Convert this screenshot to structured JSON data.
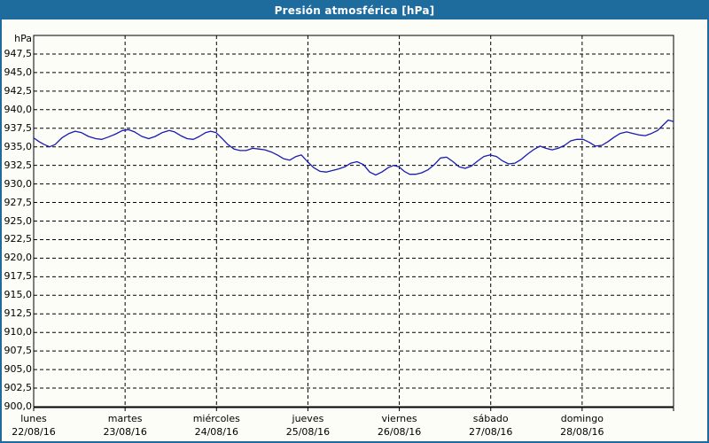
{
  "window": {
    "title": "Presión atmosférica [hPa]"
  },
  "colors": {
    "titlebar_bg": "#1e6b9d",
    "window_border": "#1e6b9d",
    "title_text": "#ffffff",
    "content_bg": "#fcfdf7",
    "plot_border": "#000000",
    "gridline": "#000000",
    "series_line": "#1a1ab4",
    "label_text": "#000000"
  },
  "chart_data": {
    "type": "line",
    "title": "Presión atmosférica [hPa]",
    "unit": "hPa",
    "ylabel": "hPa",
    "xlabel": "",
    "ylim": [
      900,
      950
    ],
    "xlim_hours": [
      0,
      168
    ],
    "grid": "dashed",
    "legend": "none",
    "yticks": [
      {
        "value": 947.5,
        "label": "947,5"
      },
      {
        "value": 945.0,
        "label": "945,0"
      },
      {
        "value": 942.5,
        "label": "942,5"
      },
      {
        "value": 940.0,
        "label": "940,0"
      },
      {
        "value": 937.5,
        "label": "937,5"
      },
      {
        "value": 935.0,
        "label": "935,0"
      },
      {
        "value": 932.5,
        "label": "932,5"
      },
      {
        "value": 930.0,
        "label": "930,0"
      },
      {
        "value": 927.5,
        "label": "927,5"
      },
      {
        "value": 925.0,
        "label": "925,0"
      },
      {
        "value": 922.5,
        "label": "922,5"
      },
      {
        "value": 920.0,
        "label": "920,0"
      },
      {
        "value": 917.5,
        "label": "917,5"
      },
      {
        "value": 915.0,
        "label": "915,0"
      },
      {
        "value": 912.5,
        "label": "912,5"
      },
      {
        "value": 910.0,
        "label": "910,0"
      },
      {
        "value": 907.5,
        "label": "907,5"
      },
      {
        "value": 905.0,
        "label": "905,0"
      },
      {
        "value": 902.5,
        "label": "902,5"
      },
      {
        "value": 900.0,
        "label": "900,0"
      }
    ],
    "xticks_days": [
      {
        "day": "lunes",
        "date": "22/08/16",
        "hour": 0
      },
      {
        "day": "martes",
        "date": "23/08/16",
        "hour": 24
      },
      {
        "day": "miércoles",
        "date": "24/08/16",
        "hour": 48
      },
      {
        "day": "jueves",
        "date": "25/08/16",
        "hour": 72
      },
      {
        "day": "viernes",
        "date": "26/08/16",
        "hour": 96
      },
      {
        "day": "sábado",
        "date": "27/08/16",
        "hour": 120
      },
      {
        "day": "domingo",
        "date": "28/08/16",
        "hour": 144
      }
    ],
    "series": [
      {
        "name": "Presión atmosférica",
        "color": "#1a1ab4",
        "points": [
          [
            0,
            936.2
          ],
          [
            1.4,
            935.7
          ],
          [
            2.8,
            935.3
          ],
          [
            4.2,
            935.0
          ],
          [
            5.6,
            935.3
          ],
          [
            7.4,
            936.2
          ],
          [
            9.3,
            936.8
          ],
          [
            10.9,
            937.1
          ],
          [
            12.6,
            936.9
          ],
          [
            14.4,
            936.4
          ],
          [
            16.3,
            936.1
          ],
          [
            17.9,
            936.0
          ],
          [
            19.5,
            936.3
          ],
          [
            21.4,
            936.7
          ],
          [
            23.3,
            937.2
          ],
          [
            24.9,
            937.3
          ],
          [
            26.5,
            937.0
          ],
          [
            28.4,
            936.4
          ],
          [
            30.2,
            936.1
          ],
          [
            31.9,
            936.4
          ],
          [
            33.7,
            936.9
          ],
          [
            35.6,
            937.2
          ],
          [
            37,
            937.0
          ],
          [
            38.6,
            936.5
          ],
          [
            40.3,
            936.1
          ],
          [
            41.9,
            936.0
          ],
          [
            43.5,
            936.4
          ],
          [
            45.1,
            936.9
          ],
          [
            46.5,
            937.1
          ],
          [
            47.9,
            936.9
          ],
          [
            49.3,
            936.2
          ],
          [
            51,
            935.3
          ],
          [
            52.6,
            934.7
          ],
          [
            54.2,
            934.5
          ],
          [
            55.8,
            934.5
          ],
          [
            57.5,
            934.8
          ],
          [
            59.1,
            934.7
          ],
          [
            60.7,
            934.6
          ],
          [
            62.4,
            934.3
          ],
          [
            64,
            933.9
          ],
          [
            65.6,
            933.4
          ],
          [
            67.2,
            933.2
          ],
          [
            68.9,
            933.7
          ],
          [
            70.3,
            933.9
          ],
          [
            71.9,
            933.0
          ],
          [
            73.5,
            932.2
          ],
          [
            75.2,
            931.7
          ],
          [
            76.8,
            931.6
          ],
          [
            78.4,
            931.8
          ],
          [
            80,
            932.0
          ],
          [
            81.7,
            932.3
          ],
          [
            83.3,
            932.8
          ],
          [
            84.9,
            933.0
          ],
          [
            86.6,
            932.6
          ],
          [
            88.2,
            931.6
          ],
          [
            89.8,
            931.2
          ],
          [
            91.4,
            931.6
          ],
          [
            93.1,
            932.2
          ],
          [
            94.5,
            932.5
          ],
          [
            95.9,
            932.3
          ],
          [
            97.3,
            931.7
          ],
          [
            98.7,
            931.3
          ],
          [
            100.3,
            931.3
          ],
          [
            101.9,
            931.5
          ],
          [
            103.5,
            931.9
          ],
          [
            105.2,
            932.6
          ],
          [
            106.8,
            933.5
          ],
          [
            108.4,
            933.6
          ],
          [
            110.1,
            933.0
          ],
          [
            111.7,
            932.3
          ],
          [
            113.3,
            932.1
          ],
          [
            114.9,
            932.4
          ],
          [
            116.6,
            933.1
          ],
          [
            118.2,
            933.7
          ],
          [
            119.8,
            933.9
          ],
          [
            121.5,
            933.7
          ],
          [
            123.1,
            933.1
          ],
          [
            124.7,
            932.7
          ],
          [
            126.4,
            932.8
          ],
          [
            128,
            933.3
          ],
          [
            129.6,
            934.0
          ],
          [
            131.2,
            934.6
          ],
          [
            132.9,
            935.1
          ],
          [
            134.5,
            934.8
          ],
          [
            136.1,
            934.6
          ],
          [
            137.7,
            934.8
          ],
          [
            139.4,
            935.2
          ],
          [
            141,
            935.8
          ],
          [
            142.6,
            936.0
          ],
          [
            144.3,
            936.0
          ],
          [
            145.9,
            935.6
          ],
          [
            147.5,
            935.1
          ],
          [
            149.2,
            935.2
          ],
          [
            150.8,
            935.7
          ],
          [
            152.4,
            936.3
          ],
          [
            154,
            936.8
          ],
          [
            155.7,
            937.0
          ],
          [
            157.3,
            936.8
          ],
          [
            158.9,
            936.6
          ],
          [
            160.6,
            936.5
          ],
          [
            162.2,
            936.8
          ],
          [
            163.8,
            937.2
          ],
          [
            165.2,
            937.9
          ],
          [
            166.6,
            938.6
          ],
          [
            168,
            938.4
          ]
        ]
      }
    ]
  }
}
